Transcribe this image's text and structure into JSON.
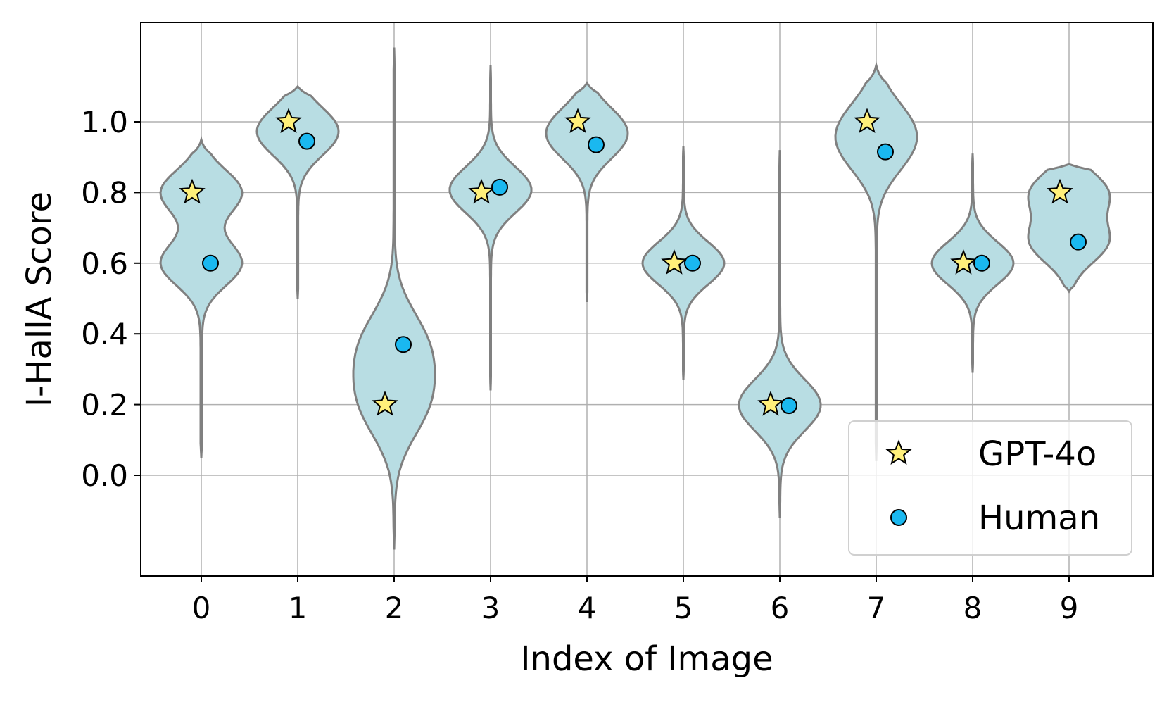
{
  "chart_data": {
    "type": "violin",
    "xlabel": "Index of Image",
    "ylabel": "I-HallA Score",
    "categories": [
      "0",
      "1",
      "2",
      "3",
      "4",
      "5",
      "6",
      "7",
      "8",
      "9"
    ],
    "y_ticks": [
      "0.0",
      "0.2",
      "0.4",
      "0.6",
      "0.8",
      "1.0"
    ],
    "ylim": [
      -0.28,
      1.28
    ],
    "grid": true,
    "legend_position": "lower-right",
    "series": [
      {
        "name": "GPT-4o",
        "marker": "star",
        "color": "#fff07a",
        "values": [
          0.8,
          1.0,
          0.2,
          0.8,
          1.0,
          0.6,
          0.2,
          1.0,
          0.6,
          0.8
        ]
      },
      {
        "name": "Human",
        "marker": "circle",
        "color": "#1ab8f0",
        "values": [
          0.6,
          0.945,
          0.37,
          0.815,
          0.935,
          0.6,
          0.197,
          0.915,
          0.6,
          0.66
        ]
      }
    ],
    "violins": [
      {
        "category": "0",
        "ymin": 0.05,
        "ymax": 0.95
      },
      {
        "category": "1",
        "ymin": 0.5,
        "ymax": 1.1
      },
      {
        "category": "2",
        "ymin": -0.21,
        "ymax": 1.21
      },
      {
        "category": "3",
        "ymin": 0.24,
        "ymax": 1.16
      },
      {
        "category": "4",
        "ymin": 0.49,
        "ymax": 1.11
      },
      {
        "category": "5",
        "ymin": 0.27,
        "ymax": 0.93
      },
      {
        "category": "6",
        "ymin": -0.12,
        "ymax": 0.92
      },
      {
        "category": "7",
        "ymin": 0.04,
        "ymax": 1.16
      },
      {
        "category": "8",
        "ymin": 0.29,
        "ymax": 0.91
      },
      {
        "category": "9",
        "ymin": 0.52,
        "ymax": 0.88
      }
    ],
    "colors": {
      "violin_fill": "#b8dde3",
      "violin_edge": "#808080",
      "grid": "#b0b0b0"
    }
  }
}
